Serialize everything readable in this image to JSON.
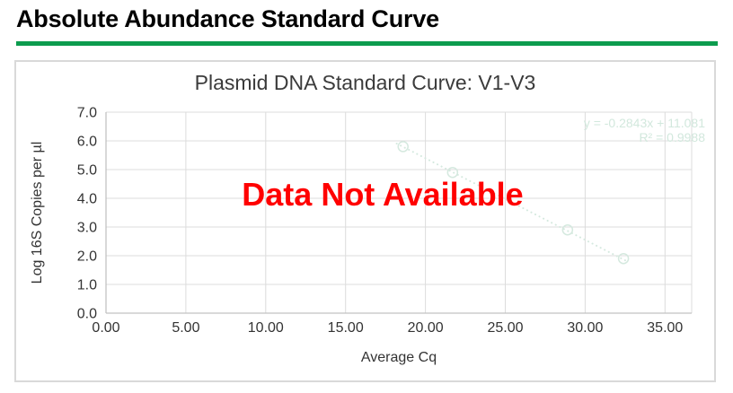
{
  "header": {
    "title": "Absolute Abundance Standard Curve",
    "underline_color": "#0c9c4e"
  },
  "chart_data": {
    "type": "scatter",
    "title": "Plasmid DNA Standard Curve: V1-V3",
    "xlabel": "Average Cq",
    "ylabel": "Log 16S Copies per µl",
    "xlim": [
      0,
      36.67
    ],
    "ylim": [
      0,
      7
    ],
    "x_ticks": [
      0,
      5,
      10,
      15,
      20,
      25,
      30,
      35
    ],
    "x_tick_labels": [
      "0.00",
      "5.00",
      "10.00",
      "15.00",
      "20.00",
      "25.00",
      "30.00",
      "35.00"
    ],
    "y_ticks": [
      0,
      1,
      2,
      3,
      4,
      5,
      6,
      7
    ],
    "y_tick_labels": [
      "0.0",
      "1.0",
      "2.0",
      "3.0",
      "4.0",
      "5.0",
      "6.0",
      "7.0"
    ],
    "grid": true,
    "legend": "none",
    "series": [
      {
        "marker": "open-circle",
        "color": "#d5e9df",
        "points": [
          [
            18.6,
            5.8
          ],
          [
            21.7,
            4.9
          ],
          [
            28.9,
            2.9
          ],
          [
            32.4,
            1.9
          ]
        ]
      }
    ],
    "trendline": {
      "style": "dotted",
      "color": "#d5e9df",
      "slope": -0.2843,
      "intercept": 11.081,
      "x_start": 18.2,
      "x_end": 32.7,
      "equation_label": "y = -0.2843x + 11.081",
      "r_squared_label": "R² = 0.9988",
      "label_color": "#d2e8dd"
    },
    "overlay_text": "Data Not Available",
    "overlay_color": "#ff0000",
    "colors": {
      "grid": "#dcdcdc",
      "axis": "#c2c2c2",
      "tick_label": "#333333",
      "axis_title": "#333333"
    }
  }
}
